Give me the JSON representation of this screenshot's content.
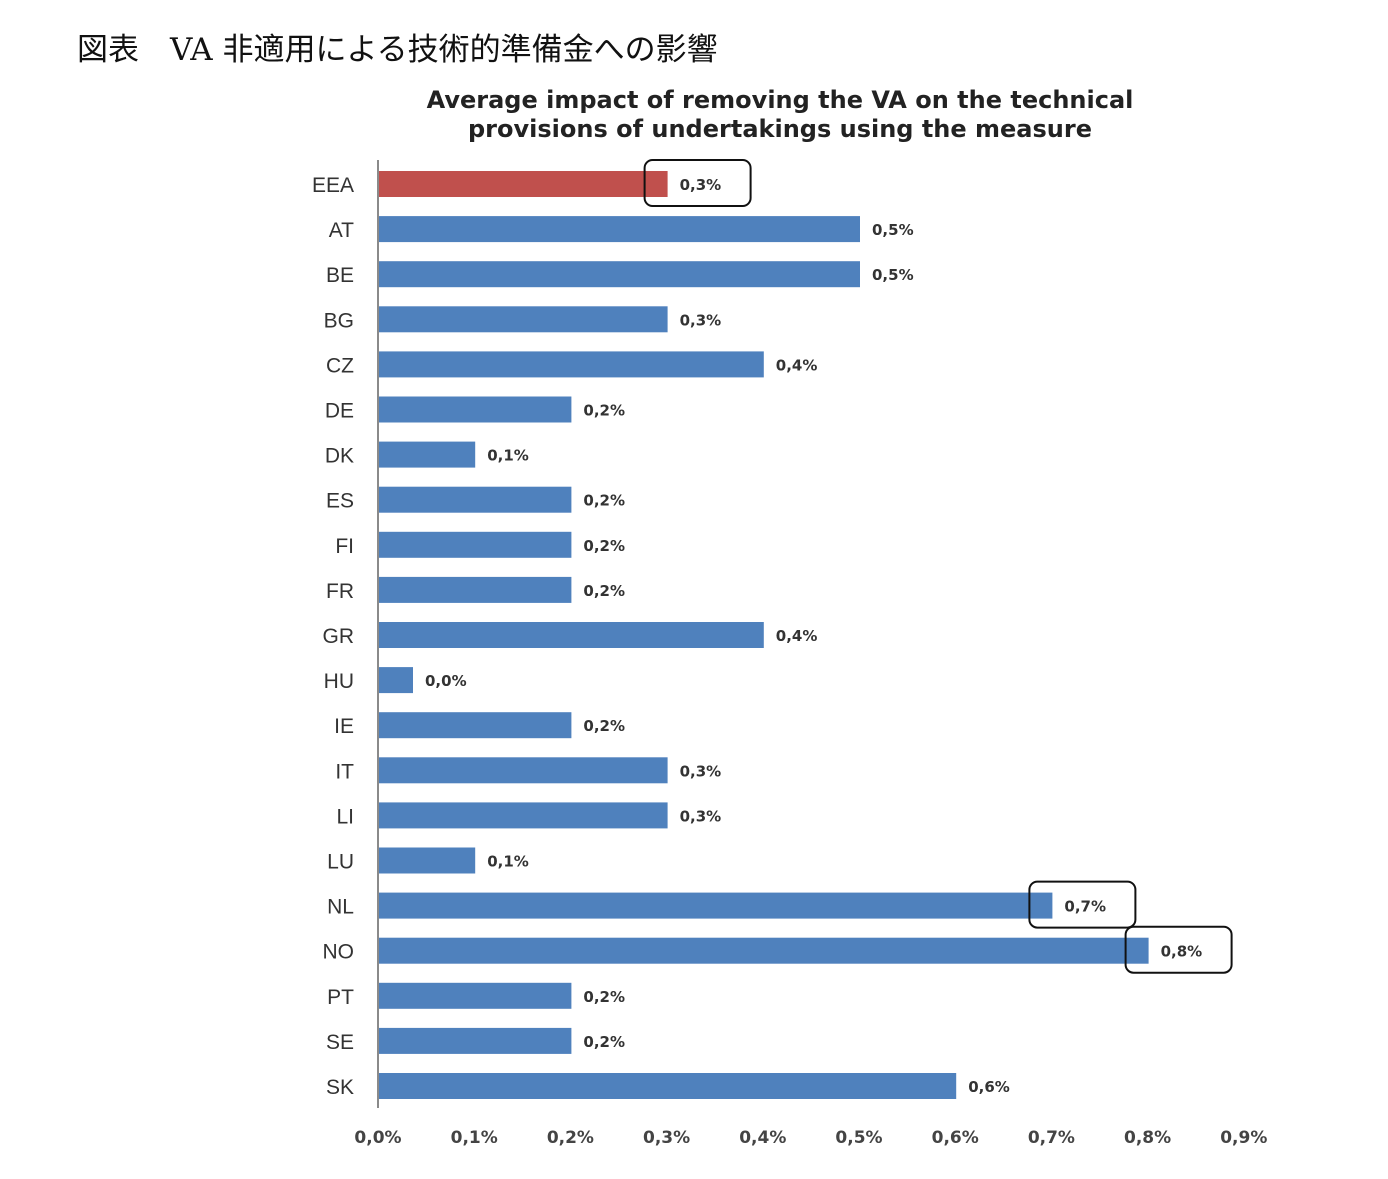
{
  "caption": "図表　VA 非適用による技術的準備金への影響",
  "chart_data": {
    "type": "bar",
    "orientation": "horizontal",
    "title": "Average impact of removing the VA on the technical provisions of undertakings using the measure",
    "title_lines": [
      "Average impact of removing the VA on the technical",
      "provisions of undertakings using the measure"
    ],
    "categories": [
      "EEA",
      "AT",
      "BE",
      "BG",
      "CZ",
      "DE",
      "DK",
      "ES",
      "FI",
      "FR",
      "GR",
      "HU",
      "IE",
      "IT",
      "LI",
      "LU",
      "NL",
      "NO",
      "PT",
      "SE",
      "SK"
    ],
    "values": [
      0.3,
      0.5,
      0.5,
      0.3,
      0.4,
      0.2,
      0.1,
      0.2,
      0.2,
      0.2,
      0.4,
      0.0,
      0.2,
      0.3,
      0.3,
      0.1,
      0.7,
      0.8,
      0.2,
      0.2,
      0.6
    ],
    "data_labels": [
      "0,3%",
      "0,5%",
      "0,5%",
      "0,3%",
      "0,4%",
      "0,2%",
      "0,1%",
      "0,2%",
      "0,2%",
      "0,2%",
      "0,4%",
      "0,0%",
      "0,2%",
      "0,3%",
      "0,3%",
      "0,1%",
      "0,7%",
      "0,8%",
      "0,2%",
      "0,2%",
      "0,6%"
    ],
    "x_ticks": [
      "0,0%",
      "0,1%",
      "0,2%",
      "0,3%",
      "0,4%",
      "0,5%",
      "0,6%",
      "0,7%",
      "0,8%",
      "0,9%"
    ],
    "xlim": [
      0,
      0.9
    ],
    "grid": false,
    "legend": "none",
    "colors": {
      "bar": "#4F81BD",
      "highlight": "#C0504D"
    },
    "highlighted_categories": [
      "EEA"
    ],
    "boxed_labels": [
      "EEA",
      "NL",
      "NO"
    ]
  }
}
